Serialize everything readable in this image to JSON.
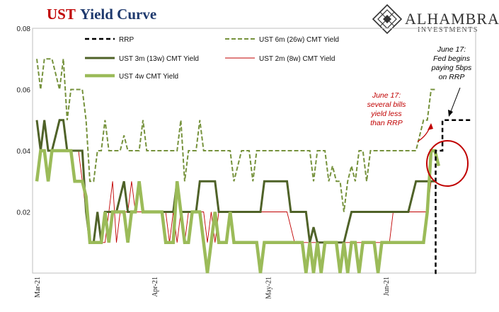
{
  "title": {
    "part1": "UST",
    "part2": "Yield Curve",
    "color1": "#c00000",
    "color2": "#1f3a6e"
  },
  "logo": {
    "name": "ALHAMBRA",
    "sub": "INVESTMENTS"
  },
  "chart_data": {
    "type": "line",
    "ylim": [
      0,
      0.08
    ],
    "yticks": [
      "0.08",
      "0.06",
      "0.04",
      "0.02"
    ],
    "xticks": [
      {
        "label": "Mar-21",
        "x": 0
      },
      {
        "label": "Apr-21",
        "x": 31
      },
      {
        "label": "May-21",
        "x": 61
      },
      {
        "label": "Jun-21",
        "x": 92
      }
    ],
    "xlim": [
      0,
      115
    ],
    "series": [
      {
        "name": "RRP",
        "color": "#000000",
        "style": "dash",
        "width": 2.5,
        "legend_row": 0,
        "legend_col": 0,
        "x": [
          105,
          105.2,
          105.2,
          107,
          107,
          115
        ],
        "y": [
          0,
          0,
          0.04,
          0.04,
          0.05,
          0.05
        ]
      },
      {
        "name": "UST 6m (26w) CMT Yield",
        "color": "#76923c",
        "style": "dash",
        "width": 2,
        "legend_row": 0,
        "legend_col": 1,
        "x": [
          0,
          1,
          2,
          3,
          4,
          5,
          6,
          7,
          8,
          9,
          10,
          11,
          12,
          13,
          14,
          15,
          16,
          17,
          18,
          19,
          20,
          21,
          22,
          23,
          24,
          25,
          26,
          27,
          28,
          29,
          30,
          31,
          32,
          33,
          34,
          35,
          36,
          37,
          38,
          39,
          40,
          41,
          42,
          43,
          44,
          45,
          46,
          47,
          48,
          49,
          50,
          51,
          52,
          53,
          54,
          55,
          56,
          57,
          58,
          59,
          60,
          61,
          62,
          63,
          64,
          65,
          66,
          67,
          68,
          69,
          70,
          71,
          72,
          73,
          74,
          75,
          76,
          77,
          78,
          79,
          80,
          81,
          82,
          83,
          84,
          85,
          86,
          87,
          88,
          89,
          90,
          91,
          92,
          93,
          94,
          95,
          96,
          97,
          98,
          99,
          100,
          101,
          102,
          103,
          104,
          105
        ],
        "y": [
          0.07,
          0.06,
          0.07,
          0.07,
          0.07,
          0.065,
          0.06,
          0.07,
          0.05,
          0.06,
          0.06,
          0.06,
          0.06,
          0.05,
          0.03,
          0.03,
          0.04,
          0.04,
          0.05,
          0.04,
          0.04,
          0.04,
          0.04,
          0.045,
          0.04,
          0.04,
          0.04,
          0.04,
          0.05,
          0.04,
          0.04,
          0.04,
          0.04,
          0.04,
          0.04,
          0.04,
          0.04,
          0.04,
          0.05,
          0.03,
          0.04,
          0.04,
          0.04,
          0.05,
          0.04,
          0.04,
          0.04,
          0.04,
          0.04,
          0.04,
          0.04,
          0.04,
          0.03,
          0.035,
          0.04,
          0.04,
          0.04,
          0.03,
          0.04,
          0.04,
          0.04,
          0.04,
          0.04,
          0.04,
          0.04,
          0.04,
          0.04,
          0.04,
          0.04,
          0.04,
          0.04,
          0.04,
          0.04,
          0.03,
          0.04,
          0.04,
          0.04,
          0.03,
          0.035,
          0.03,
          0.03,
          0.02,
          0.03,
          0.035,
          0.03,
          0.04,
          0.04,
          0.03,
          0.04,
          0.04,
          0.04,
          0.04,
          0.04,
          0.04,
          0.04,
          0.04,
          0.04,
          0.04,
          0.04,
          0.04,
          0.04,
          0.045,
          0.05,
          0.05,
          0.06,
          0.06
        ]
      },
      {
        "name": "UST 3m (13w) CMT Yield",
        "color": "#4f6228",
        "style": "solid",
        "width": 3,
        "legend_row": 1,
        "legend_col": 0,
        "x": [
          0,
          1,
          2,
          3,
          4,
          5,
          6,
          7,
          8,
          9,
          10,
          11,
          12,
          13,
          14,
          15,
          16,
          17,
          18,
          19,
          20,
          21,
          22,
          23,
          24,
          25,
          26,
          27,
          28,
          29,
          30,
          31,
          32,
          33,
          34,
          35,
          36,
          37,
          38,
          39,
          40,
          41,
          42,
          43,
          44,
          45,
          46,
          47,
          48,
          49,
          50,
          51,
          52,
          53,
          54,
          55,
          56,
          57,
          58,
          59,
          60,
          61,
          62,
          63,
          64,
          65,
          66,
          67,
          68,
          69,
          70,
          71,
          72,
          73,
          74,
          75,
          76,
          77,
          78,
          79,
          80,
          81,
          82,
          83,
          84,
          85,
          86,
          87,
          88,
          89,
          90,
          91,
          92,
          93,
          94,
          95,
          96,
          97,
          98,
          99,
          100,
          101,
          102,
          103,
          104,
          105
        ],
        "y": [
          0.05,
          0.04,
          0.05,
          0.04,
          0.04,
          0.045,
          0.05,
          0.05,
          0.04,
          0.04,
          0.04,
          0.04,
          0.04,
          0.02,
          0.01,
          0.01,
          0.02,
          0.01,
          0.02,
          0.02,
          0.02,
          0.02,
          0.025,
          0.03,
          0.02,
          0.02,
          0.02,
          0.03,
          0.02,
          0.02,
          0.02,
          0.02,
          0.02,
          0.02,
          0.02,
          0.02,
          0.02,
          0.03,
          0.02,
          0.02,
          0.02,
          0.02,
          0.02,
          0.03,
          0.03,
          0.03,
          0.03,
          0.03,
          0.02,
          0.02,
          0.02,
          0.02,
          0.02,
          0.02,
          0.02,
          0.02,
          0.02,
          0.02,
          0.02,
          0.02,
          0.03,
          0.03,
          0.03,
          0.03,
          0.03,
          0.03,
          0.03,
          0.02,
          0.02,
          0.02,
          0.02,
          0.02,
          0.01,
          0.015,
          0.01,
          0.01,
          0.01,
          0.01,
          0.01,
          0.01,
          0.01,
          0.01,
          0.015,
          0.02,
          0.02,
          0.02,
          0.02,
          0.02,
          0.02,
          0.02,
          0.02,
          0.02,
          0.02,
          0.02,
          0.02,
          0.02,
          0.02,
          0.02,
          0.02,
          0.025,
          0.03,
          0.03,
          0.03,
          0.03,
          0.03,
          0.03
        ]
      },
      {
        "name": "UST 2m (8w) CMT Yield",
        "color": "#c00000",
        "style": "solid",
        "width": 0.9,
        "legend_row": 1,
        "legend_col": 1,
        "x": [
          0,
          1,
          2,
          3,
          4,
          5,
          6,
          7,
          8,
          9,
          10,
          11,
          12,
          13,
          14,
          15,
          16,
          17,
          18,
          19,
          20,
          21,
          22,
          23,
          24,
          25,
          26,
          27,
          28,
          29,
          30,
          31,
          32,
          33,
          34,
          35,
          36,
          37,
          38,
          39,
          40,
          41,
          42,
          43,
          44,
          45,
          46,
          47,
          48,
          49,
          50,
          51,
          52,
          53,
          54,
          55,
          56,
          57,
          58,
          59,
          60,
          61,
          62,
          63,
          64,
          65,
          66,
          67,
          68,
          69,
          70,
          71,
          72,
          73,
          74,
          75,
          76,
          77,
          78,
          79,
          80,
          81,
          82,
          83,
          84,
          85,
          86,
          87,
          88,
          89,
          90,
          91,
          92,
          93,
          94,
          95,
          96,
          97,
          98,
          99,
          100,
          101,
          102,
          103,
          104,
          105
        ],
        "y": [
          0.05,
          0.04,
          0.05,
          0.04,
          0.04,
          0.04,
          0.04,
          0.04,
          0.04,
          0.04,
          0.04,
          0.04,
          0.03,
          0.02,
          0.01,
          0.01,
          0.02,
          0.01,
          0.01,
          0.02,
          0.03,
          0.01,
          0.02,
          0.02,
          0.02,
          0.03,
          0.02,
          0.02,
          0.02,
          0.02,
          0.02,
          0.02,
          0.02,
          0.02,
          0.02,
          0.01,
          0.02,
          0.01,
          0.02,
          0.01,
          0.02,
          0.02,
          0.02,
          0.02,
          0.02,
          0.01,
          0.02,
          0.01,
          0.02,
          0.02,
          0.02,
          0.02,
          0.02,
          0.02,
          0.02,
          0.02,
          0.02,
          0.02,
          0.02,
          0.02,
          0.02,
          0.02,
          0.02,
          0.02,
          0.02,
          0.02,
          0.02,
          0.015,
          0.01,
          0.01,
          0.01,
          0.01,
          0.01,
          0.01,
          0.01,
          0.01,
          0.01,
          0.01,
          0.01,
          0.01,
          0.01,
          0.01,
          0.01,
          0.01,
          0.01,
          0.01,
          0.01,
          0.01,
          0.01,
          0.01,
          0.01,
          0.01,
          0.01,
          0.01,
          0.02,
          0.02,
          0.02,
          0.02,
          0.02,
          0.02,
          0.02,
          0.02,
          0.02,
          0.02,
          0.03,
          0.03
        ]
      },
      {
        "name": "UST 4w CMT Yield",
        "color": "#9bbb59",
        "style": "solid",
        "width": 4.5,
        "legend_row": 2,
        "legend_col": 0,
        "x": [
          0,
          1,
          2,
          3,
          4,
          5,
          6,
          7,
          8,
          9,
          10,
          11,
          12,
          13,
          14,
          15,
          16,
          17,
          18,
          19,
          20,
          21,
          22,
          23,
          24,
          25,
          26,
          27,
          28,
          29,
          30,
          31,
          32,
          33,
          34,
          35,
          36,
          37,
          38,
          39,
          40,
          41,
          42,
          43,
          44,
          45,
          46,
          47,
          48,
          49,
          50,
          51,
          52,
          53,
          54,
          55,
          56,
          57,
          58,
          59,
          60,
          61,
          62,
          63,
          64,
          65,
          66,
          67,
          68,
          69,
          70,
          71,
          72,
          73,
          74,
          75,
          76,
          77,
          78,
          79,
          80,
          81,
          82,
          83,
          84,
          85,
          86,
          87,
          88,
          89,
          90,
          91,
          92,
          93,
          94,
          95,
          96,
          97,
          98,
          99,
          100,
          101,
          102,
          103,
          104,
          105,
          106
        ],
        "y": [
          0.03,
          0.04,
          0.04,
          0.03,
          0.04,
          0.04,
          0.04,
          0.04,
          0.04,
          0.04,
          0.03,
          0.03,
          0.03,
          0.025,
          0.01,
          0.01,
          0.01,
          0.01,
          0.02,
          0.01,
          0.02,
          0.02,
          0.02,
          0.02,
          0.01,
          0.02,
          0.02,
          0.03,
          0.02,
          0.02,
          0.02,
          0.02,
          0.02,
          0.02,
          0.01,
          0.01,
          0.01,
          0.03,
          0.02,
          0.01,
          0.01,
          0.02,
          0.02,
          0.02,
          0.01,
          0.0,
          0.01,
          0.02,
          0.01,
          0.01,
          0.01,
          0.02,
          0.01,
          0.01,
          0.01,
          0.01,
          0.01,
          0.01,
          0.01,
          0.0,
          0.01,
          0.01,
          0.01,
          0.01,
          0.01,
          0.01,
          0.01,
          0.01,
          0.01,
          0.01,
          0.01,
          0.0,
          0.01,
          0.0,
          0.01,
          0.0,
          0.01,
          0.01,
          0.01,
          0.01,
          0.0,
          0.01,
          0.0,
          0.01,
          0.01,
          0.0,
          0.01,
          0.01,
          0.01,
          0.01,
          0.0,
          0.01,
          0.01,
          0.01,
          0.01,
          0.01,
          0.01,
          0.01,
          0.01,
          0.01,
          0.01,
          0.01,
          0.01,
          0.02,
          0.04,
          0.04,
          0.035
        ]
      }
    ],
    "annotations": [
      {
        "id": "bills",
        "lines": [
          "June 17:",
          "several bills",
          "yield less",
          "than RRP"
        ],
        "color": "#c00000"
      },
      {
        "id": "fed",
        "lines": [
          "June 17:",
          "Fed begins",
          "paying 5bps",
          "on RRP"
        ],
        "color": "#000000"
      }
    ]
  }
}
